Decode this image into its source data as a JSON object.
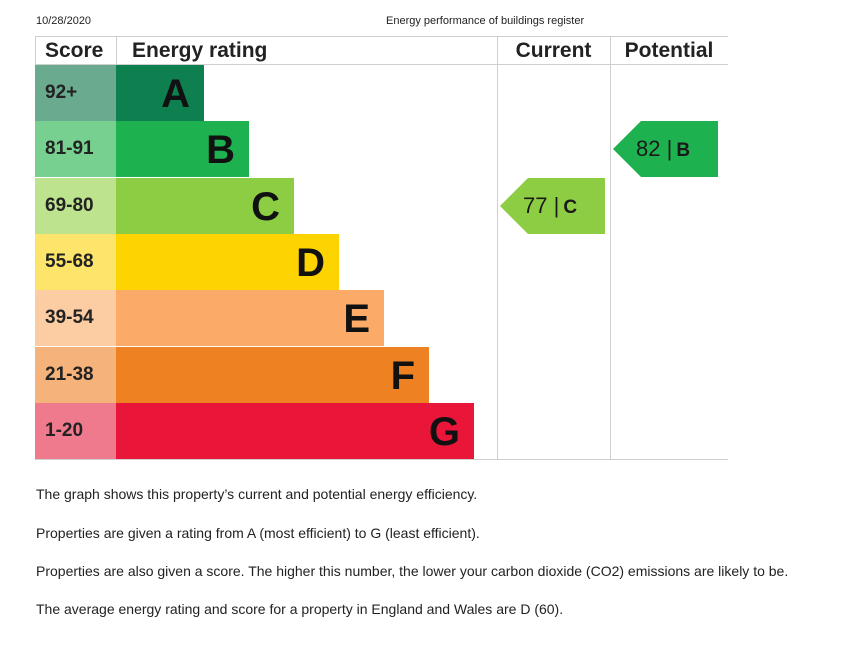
{
  "header": {
    "date": "10/28/2020",
    "title": "Energy performance of buildings register"
  },
  "table": {
    "headers": {
      "score": "Score",
      "rating": "Energy rating",
      "current": "Current",
      "potential": "Potential"
    },
    "bands": [
      {
        "score": "92+",
        "letter": "A",
        "color": "#0e7f4f",
        "score_bg": "#6aab8f"
      },
      {
        "score": "81-91",
        "letter": "B",
        "color": "#1db14f",
        "score_bg": "#77d08f"
      },
      {
        "score": "69-80",
        "letter": "C",
        "color": "#8dcd43",
        "score_bg": "#bde38e"
      },
      {
        "score": "55-68",
        "letter": "D",
        "color": "#fdd300",
        "score_bg": "#fde56b"
      },
      {
        "score": "39-54",
        "letter": "E",
        "color": "#fbaa67",
        "score_bg": "#fccca3"
      },
      {
        "score": "21-38",
        "letter": "F",
        "color": "#ee8122",
        "score_bg": "#f5b27a"
      },
      {
        "score": "1-20",
        "letter": "G",
        "color": "#e9163a",
        "score_bg": "#f07a8d"
      }
    ],
    "current": {
      "score": "77 |",
      "letter": "C",
      "band_index": 2,
      "color": "#8dcd43"
    },
    "potential": {
      "score": "82 |",
      "letter": "B",
      "band_index": 1,
      "color": "#1db14f"
    }
  },
  "notes": [
    "The graph shows this property’s current and potential energy efficiency.",
    "Properties are given a rating from A (most efficient) to G (least efficient).",
    "Properties are also given a score. The higher this number, the lower your carbon dioxide (CO2) emissions are likely to be.",
    "The average energy rating and score for a property in England and Wales are D (60)."
  ]
}
